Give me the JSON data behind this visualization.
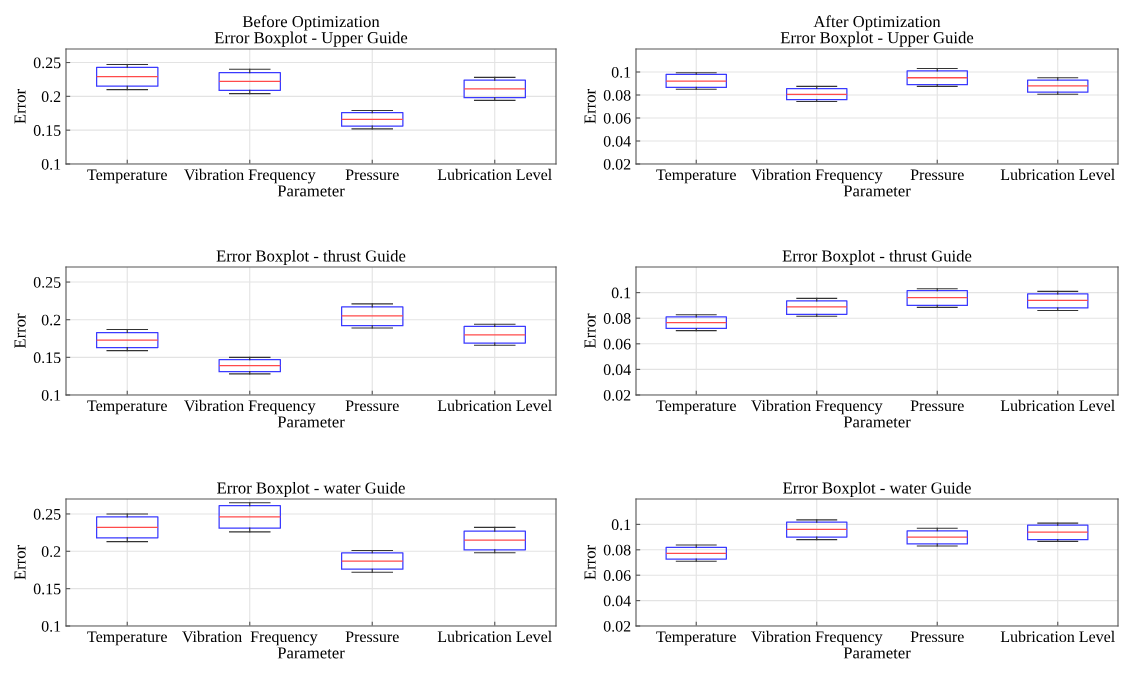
{
  "chart_data": [
    {
      "type": "box",
      "title": "Before Optimization",
      "subtitle": "Error Boxplot - Upper Guide",
      "xlabel": "Parameter",
      "ylabel": "Error",
      "categories": [
        "Temperature",
        "Vibration Frequency",
        "Pressure",
        "Lubrication Level"
      ],
      "ylim": [
        0.1,
        0.27
      ],
      "yticks": [
        0.1,
        0.15,
        0.2,
        0.25
      ],
      "grid": true,
      "boxes": [
        {
          "low": 0.21,
          "q1": 0.215,
          "median": 0.229,
          "q3": 0.243,
          "high": 0.247
        },
        {
          "low": 0.204,
          "q1": 0.209,
          "median": 0.222,
          "q3": 0.235,
          "high": 0.24
        },
        {
          "low": 0.152,
          "q1": 0.156,
          "median": 0.166,
          "q3": 0.176,
          "high": 0.179
        },
        {
          "low": 0.194,
          "q1": 0.198,
          "median": 0.211,
          "q3": 0.224,
          "high": 0.228
        }
      ]
    },
    {
      "type": "box",
      "title": "After Optimization",
      "subtitle": "Error Boxplot - Upper Guide",
      "xlabel": "Parameter",
      "ylabel": "Error",
      "categories": [
        "Temperature",
        "Vibration Frequency",
        "Pressure",
        "Lubrication Level"
      ],
      "ylim": [
        0.02,
        0.12
      ],
      "yticks": [
        0.02,
        0.04,
        0.06,
        0.08,
        0.1
      ],
      "grid": true,
      "boxes": [
        {
          "low": 0.085,
          "q1": 0.0866,
          "median": 0.092,
          "q3": 0.098,
          "high": 0.0994
        },
        {
          "low": 0.0744,
          "q1": 0.0759,
          "median": 0.0806,
          "q3": 0.0856,
          "high": 0.0875
        },
        {
          "low": 0.0875,
          "q1": 0.089,
          "median": 0.095,
          "q3": 0.101,
          "high": 0.103
        },
        {
          "low": 0.0806,
          "q1": 0.0825,
          "median": 0.088,
          "q3": 0.093,
          "high": 0.095
        }
      ]
    },
    {
      "type": "box",
      "title": "Error Boxplot - thrust Guide",
      "xlabel": "Parameter",
      "ylabel": "Error",
      "categories": [
        "Temperature",
        "Vibration Frequency",
        "Pressure",
        "Lubrication Level"
      ],
      "ylim": [
        0.1,
        0.27
      ],
      "yticks": [
        0.1,
        0.15,
        0.2,
        0.25
      ],
      "grid": true,
      "boxes": [
        {
          "low": 0.159,
          "q1": 0.163,
          "median": 0.173,
          "q3": 0.183,
          "high": 0.187
        },
        {
          "low": 0.128,
          "q1": 0.131,
          "median": 0.139,
          "q3": 0.147,
          "high": 0.15
        },
        {
          "low": 0.189,
          "q1": 0.192,
          "median": 0.205,
          "q3": 0.217,
          "high": 0.221
        },
        {
          "low": 0.166,
          "q1": 0.169,
          "median": 0.18,
          "q3": 0.191,
          "high": 0.194
        }
      ]
    },
    {
      "type": "box",
      "title": "Error Boxplot - thrust Guide",
      "xlabel": "Parameter",
      "ylabel": "Error",
      "categories": [
        "Temperature",
        "Vibration Frequency",
        "Pressure",
        "Lubrication Level"
      ],
      "ylim": [
        0.02,
        0.12
      ],
      "yticks": [
        0.02,
        0.04,
        0.06,
        0.08,
        0.1
      ],
      "grid": true,
      "boxes": [
        {
          "low": 0.0703,
          "q1": 0.072,
          "median": 0.0765,
          "q3": 0.081,
          "high": 0.0827
        },
        {
          "low": 0.0815,
          "q1": 0.083,
          "median": 0.0888,
          "q3": 0.0935,
          "high": 0.0955
        },
        {
          "low": 0.0885,
          "q1": 0.09,
          "median": 0.096,
          "q3": 0.1015,
          "high": 0.103
        },
        {
          "low": 0.086,
          "q1": 0.088,
          "median": 0.094,
          "q3": 0.099,
          "high": 0.101
        }
      ]
    },
    {
      "type": "box",
      "title": "Error Boxplot - water Guide",
      "xlabel": "Parameter",
      "ylabel": "Error",
      "categories": [
        "Temperature",
        "Vibration  Frequency",
        "Pressure",
        "Lubrication Level"
      ],
      "ylim": [
        0.1,
        0.27
      ],
      "yticks": [
        0.1,
        0.15,
        0.2,
        0.25
      ],
      "grid": true,
      "boxes": [
        {
          "low": 0.213,
          "q1": 0.218,
          "median": 0.232,
          "q3": 0.246,
          "high": 0.25
        },
        {
          "low": 0.226,
          "q1": 0.231,
          "median": 0.246,
          "q3": 0.261,
          "high": 0.265
        },
        {
          "low": 0.172,
          "q1": 0.176,
          "median": 0.187,
          "q3": 0.198,
          "high": 0.201
        },
        {
          "low": 0.198,
          "q1": 0.202,
          "median": 0.215,
          "q3": 0.227,
          "high": 0.232
        }
      ]
    },
    {
      "type": "box",
      "title": "Error Boxplot - water Guide",
      "xlabel": "Parameter",
      "ylabel": "Error",
      "categories": [
        "Temperature",
        "Vibration Frequency",
        "Pressure",
        "Lubrication Level"
      ],
      "ylim": [
        0.02,
        0.12
      ],
      "yticks": [
        0.02,
        0.04,
        0.06,
        0.08,
        0.1
      ],
      "grid": true,
      "boxes": [
        {
          "low": 0.071,
          "q1": 0.0727,
          "median": 0.0772,
          "q3": 0.082,
          "high": 0.0838
        },
        {
          "low": 0.088,
          "q1": 0.09,
          "median": 0.096,
          "q3": 0.1017,
          "high": 0.1036
        },
        {
          "low": 0.083,
          "q1": 0.0846,
          "median": 0.09,
          "q3": 0.095,
          "high": 0.097
        },
        {
          "low": 0.0866,
          "q1": 0.088,
          "median": 0.094,
          "q3": 0.0994,
          "high": 0.101
        }
      ]
    }
  ]
}
